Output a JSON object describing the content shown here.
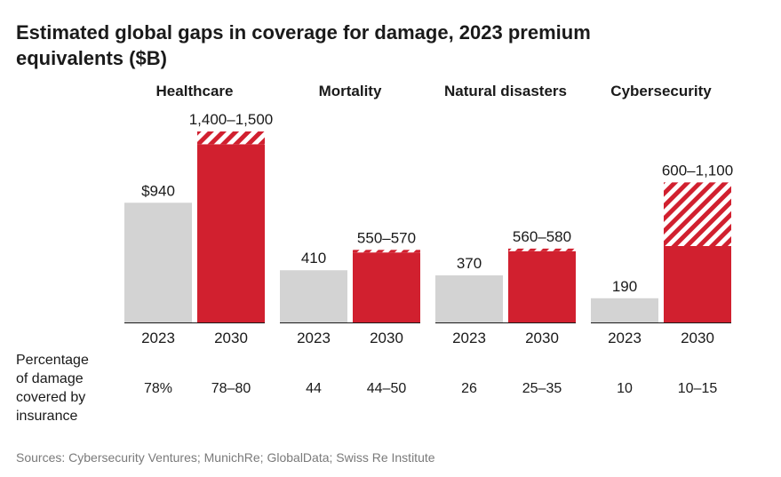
{
  "title": "Estimated global gaps in coverage for damage, 2023 premium equivalents ($B)",
  "source": "Sources: Cybersecurity Ventures; MunichRe; GlobalData; Swiss Re Institute",
  "pct_row_label": [
    "Percentage",
    "of damage",
    "covered by",
    "insurance"
  ],
  "colors": {
    "y2023": "#d3d3d3",
    "y2030": "#d1202f",
    "hatch_bg": "#ffffff"
  },
  "chart_data": {
    "type": "bar",
    "subtype": "grouped, with hatched range extension",
    "ylim": [
      0,
      1500
    ],
    "grid": false,
    "axis_labels_shown": false,
    "years": [
      "2023",
      "2030"
    ],
    "groups": [
      {
        "category": "Healthcare",
        "value_2023": 940,
        "label_2023": "$940",
        "value_2030_low": 1400,
        "value_2030_high": 1500,
        "label_2030": "1,400–1,500",
        "pct_2023": "78%",
        "pct_2030": "78–80"
      },
      {
        "category": "Mortality",
        "value_2023": 410,
        "label_2023": "410",
        "value_2030_low": 550,
        "value_2030_high": 570,
        "label_2030": "550–570",
        "pct_2023": "44",
        "pct_2030": "44–50"
      },
      {
        "category": "Natural disasters",
        "value_2023": 370,
        "label_2023": "370",
        "value_2030_low": 560,
        "value_2030_high": 580,
        "label_2030": "560–580",
        "pct_2023": "26",
        "pct_2030": "25–35"
      },
      {
        "category": "Cybersecurity",
        "value_2023": 190,
        "label_2023": "190",
        "value_2030_low": 600,
        "value_2030_high": 1100,
        "label_2030": "600–1,100",
        "pct_2023": "10",
        "pct_2030": "10–15"
      }
    ]
  }
}
